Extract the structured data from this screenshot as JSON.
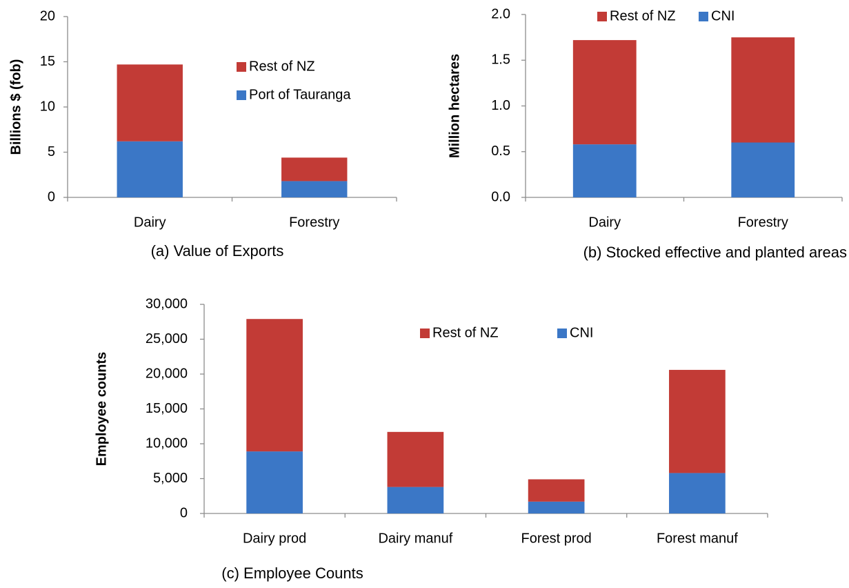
{
  "chart_data": [
    {
      "type": "bar",
      "stacked": true,
      "ylabel": "Billions $ (fob)",
      "caption": "(a)  Value of Exports",
      "categories": [
        "Dairy",
        "Forestry"
      ],
      "series": [
        {
          "name": "Port of Tauranga",
          "color": "#3b77c6",
          "values": [
            6.2,
            1.8
          ]
        },
        {
          "name": "Rest of NZ",
          "color": "#c23b36",
          "values": [
            8.5,
            2.6
          ]
        }
      ],
      "ylim": [
        0,
        20
      ],
      "yticks": [
        0,
        5,
        10,
        15,
        20
      ]
    },
    {
      "type": "bar",
      "stacked": true,
      "ylabel": "Million hectares",
      "caption": "(b)  Stocked effective and planted areas",
      "categories": [
        "Dairy",
        "Forestry"
      ],
      "series": [
        {
          "name": "CNI",
          "color": "#3b77c6",
          "values": [
            0.58,
            0.6
          ]
        },
        {
          "name": "Rest of NZ",
          "color": "#c23b36",
          "values": [
            1.14,
            1.15
          ]
        }
      ],
      "ylim": [
        0,
        2
      ],
      "yticks": [
        {
          "value": 0,
          "label": "0.0"
        },
        0.5,
        {
          "value": 1,
          "label": "1.0"
        },
        1.5,
        {
          "value": 2,
          "label": "2.0"
        }
      ]
    },
    {
      "type": "bar",
      "stacked": true,
      "ylabel": "Employee counts",
      "caption": "(c) Employee Counts",
      "categories": [
        "Dairy prod",
        "Dairy manuf",
        "Forest prod",
        "Forest manuf"
      ],
      "series": [
        {
          "name": "CNI",
          "color": "#3b77c6",
          "values": [
            8900,
            3800,
            1700,
            5800
          ]
        },
        {
          "name": "Rest of NZ",
          "color": "#c23b36",
          "values": [
            19000,
            7900,
            3200,
            14800
          ]
        }
      ],
      "ylim": [
        0,
        30000
      ],
      "yticks": [
        0,
        {
          "value": 5000,
          "label": "5,000"
        },
        {
          "value": 10000,
          "label": "10,000"
        },
        {
          "value": 15000,
          "label": "15,000"
        },
        {
          "value": 20000,
          "label": "20,000"
        },
        {
          "value": 25000,
          "label": "25,000"
        },
        {
          "value": 30000,
          "label": "30,000"
        }
      ]
    }
  ]
}
